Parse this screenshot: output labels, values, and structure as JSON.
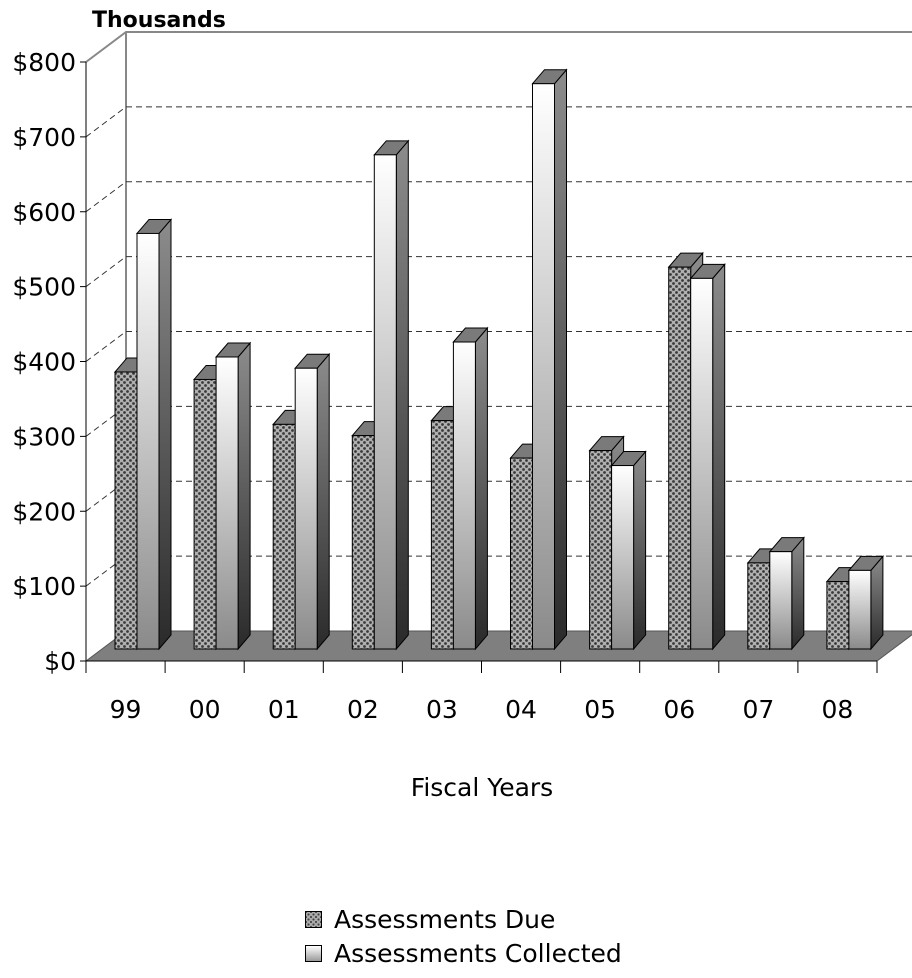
{
  "chart_data": {
    "type": "bar",
    "subtype": "3d-clustered-column",
    "unit_label": "Thousands",
    "xlabel": "Fiscal Years",
    "ylabel": "",
    "ylim": [
      0,
      800
    ],
    "ytick_labels": [
      "$0",
      "$100",
      "$200",
      "$300",
      "$400",
      "$500",
      "$600",
      "$700",
      "$800"
    ],
    "ytick_values": [
      0,
      100,
      200,
      300,
      400,
      500,
      600,
      700,
      800
    ],
    "categories": [
      "99",
      "00",
      "01",
      "02",
      "03",
      "04",
      "05",
      "06",
      "07",
      "08"
    ],
    "series": [
      {
        "name": "Assessments Due",
        "values": [
          370,
          360,
          300,
          285,
          305,
          255,
          265,
          510,
          115,
          90
        ],
        "pattern": "checkered",
        "color": "#9e9e9e"
      },
      {
        "name": "Assessments Collected",
        "values": [
          555,
          390,
          375,
          660,
          410,
          755,
          245,
          495,
          130,
          105
        ],
        "pattern": "gradient",
        "color": "#ffffff"
      }
    ],
    "grid": "dashed-horizontal",
    "legend_position": "bottom"
  }
}
